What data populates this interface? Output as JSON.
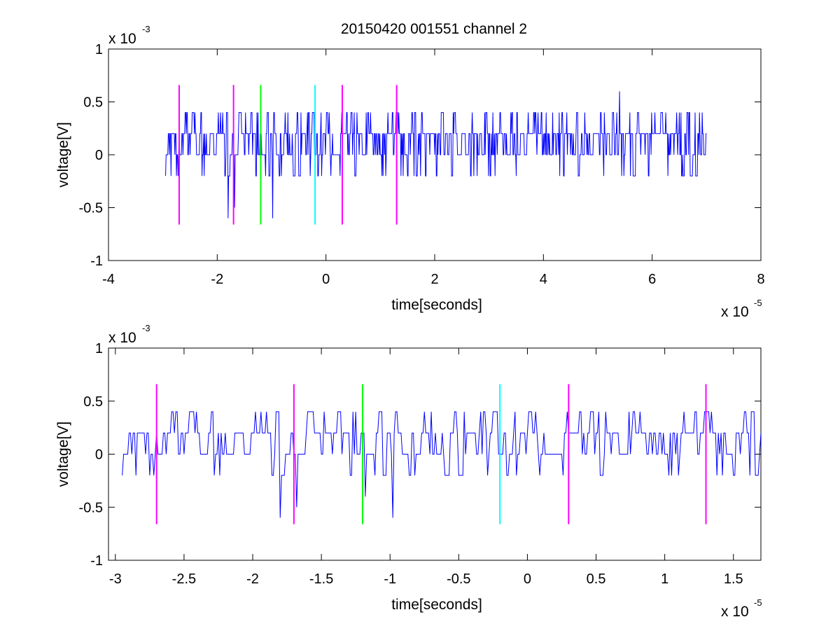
{
  "figure": {
    "title": "20150420 001551 channel 2",
    "colors": {
      "signal": "#0000ff",
      "magenta": "#ff00ff",
      "green": "#00ff00",
      "cyan": "#00ffff",
      "axes": "#000000",
      "background": "#ffffff"
    }
  },
  "chart_data": [
    {
      "type": "line",
      "title": "20150420 001551 channel 2",
      "xlabel": "time[seconds]",
      "ylabel": "voltage[V]",
      "x_exponent_label": "x 10",
      "x_exponent": "-5",
      "y_exponent_label": "x 10",
      "y_exponent": "-3",
      "xlim": [
        -4e-05,
        8e-05
      ],
      "ylim": [
        -0.001,
        0.001
      ],
      "xticks": [
        -4e-05,
        -2e-05,
        0,
        2e-05,
        4e-05,
        6e-05,
        8e-05
      ],
      "xtick_labels": [
        "-4",
        "-2",
        "0",
        "2",
        "4",
        "6",
        "8"
      ],
      "yticks": [
        -0.001,
        -0.0005,
        0,
        0.0005,
        0.001
      ],
      "ytick_labels": [
        "-1",
        "-0.5",
        "0",
        "0.5",
        "1"
      ],
      "grid": false,
      "series": [
        {
          "style": "noisy-step-trace",
          "color": "#0000ff",
          "x_range": [
            -2.95e-05,
            7e-05
          ],
          "sample_step": 1e-07,
          "quantization_levels": [
            -0.0002,
            0,
            0.0002,
            0.0004
          ],
          "typical_baseline": 0.0002,
          "spikes": [
            {
              "x": -1.8e-05,
              "y": -0.0006
            },
            {
              "x": -1.68e-05,
              "y": -0.0005
            },
            {
              "x": -9.8e-06,
              "y": -0.0006
            },
            {
              "x": -1.2e-05,
              "y": -0.0004
            },
            {
              "x": 5.4e-05,
              "y": 0.0006
            }
          ]
        }
      ],
      "markers": [
        {
          "x": -2.7e-05,
          "color": "#ff00ff",
          "y_range": [
            -0.00066,
            0.00066
          ]
        },
        {
          "x": -1.7e-05,
          "color": "#ff00ff",
          "y_range": [
            -0.00066,
            0.00066
          ]
        },
        {
          "x": -1.2e-05,
          "color": "#00ff00",
          "y_range": [
            -0.00066,
            0.00066
          ]
        },
        {
          "x": -2e-06,
          "color": "#00ffff",
          "y_range": [
            -0.00066,
            0.00066
          ]
        },
        {
          "x": 3e-06,
          "color": "#ff00ff",
          "y_range": [
            -0.00066,
            0.00066
          ]
        },
        {
          "x": 1.3e-05,
          "color": "#ff00ff",
          "y_range": [
            -0.00066,
            0.00066
          ]
        }
      ]
    },
    {
      "type": "line",
      "title": "",
      "xlabel": "time[seconds]",
      "ylabel": "voltage[V]",
      "x_exponent_label": "x 10",
      "x_exponent": "-5",
      "y_exponent_label": "x 10",
      "y_exponent": "-3",
      "xlim": [
        -3.05e-05,
        1.7e-05
      ],
      "ylim": [
        -0.001,
        0.001
      ],
      "xticks": [
        -3e-05,
        -2.5e-05,
        -2e-05,
        -1.5e-05,
        -1e-05,
        -5e-06,
        0,
        5e-06,
        1e-05,
        1.5e-05
      ],
      "xtick_labels": [
        "-3",
        "-2.5",
        "-2",
        "-1.5",
        "-1",
        "-0.5",
        "0",
        "0.5",
        "1",
        "1.5"
      ],
      "yticks": [
        -0.001,
        -0.0005,
        0,
        0.0005,
        0.001
      ],
      "ytick_labels": [
        "-1",
        "-0.5",
        "0",
        "0.5",
        "1"
      ],
      "grid": false,
      "series": [
        {
          "style": "noisy-step-trace",
          "color": "#0000ff",
          "x_range": [
            -2.95e-05,
            1.7e-05
          ],
          "sample_step": 1e-07,
          "quantization_levels": [
            -0.0002,
            0,
            0.0002,
            0.0004
          ],
          "typical_baseline": 0.0002,
          "spikes": [
            {
              "x": -1.8e-05,
              "y": -0.0006
            },
            {
              "x": -1.68e-05,
              "y": -0.0005
            },
            {
              "x": -1.18e-05,
              "y": -0.0004
            },
            {
              "x": -9.8e-06,
              "y": -0.0006
            }
          ]
        }
      ],
      "markers": [
        {
          "x": -2.7e-05,
          "color": "#ff00ff",
          "y_range": [
            -0.00066,
            0.00066
          ]
        },
        {
          "x": -1.7e-05,
          "color": "#ff00ff",
          "y_range": [
            -0.00066,
            0.00066
          ]
        },
        {
          "x": -1.2e-05,
          "color": "#00ff00",
          "y_range": [
            -0.00066,
            0.00066
          ]
        },
        {
          "x": -2e-06,
          "color": "#00ffff",
          "y_range": [
            -0.00066,
            0.00066
          ]
        },
        {
          "x": 3e-06,
          "color": "#ff00ff",
          "y_range": [
            -0.00066,
            0.00066
          ]
        },
        {
          "x": 1.3e-05,
          "color": "#ff00ff",
          "y_range": [
            -0.00066,
            0.00066
          ]
        }
      ]
    }
  ]
}
